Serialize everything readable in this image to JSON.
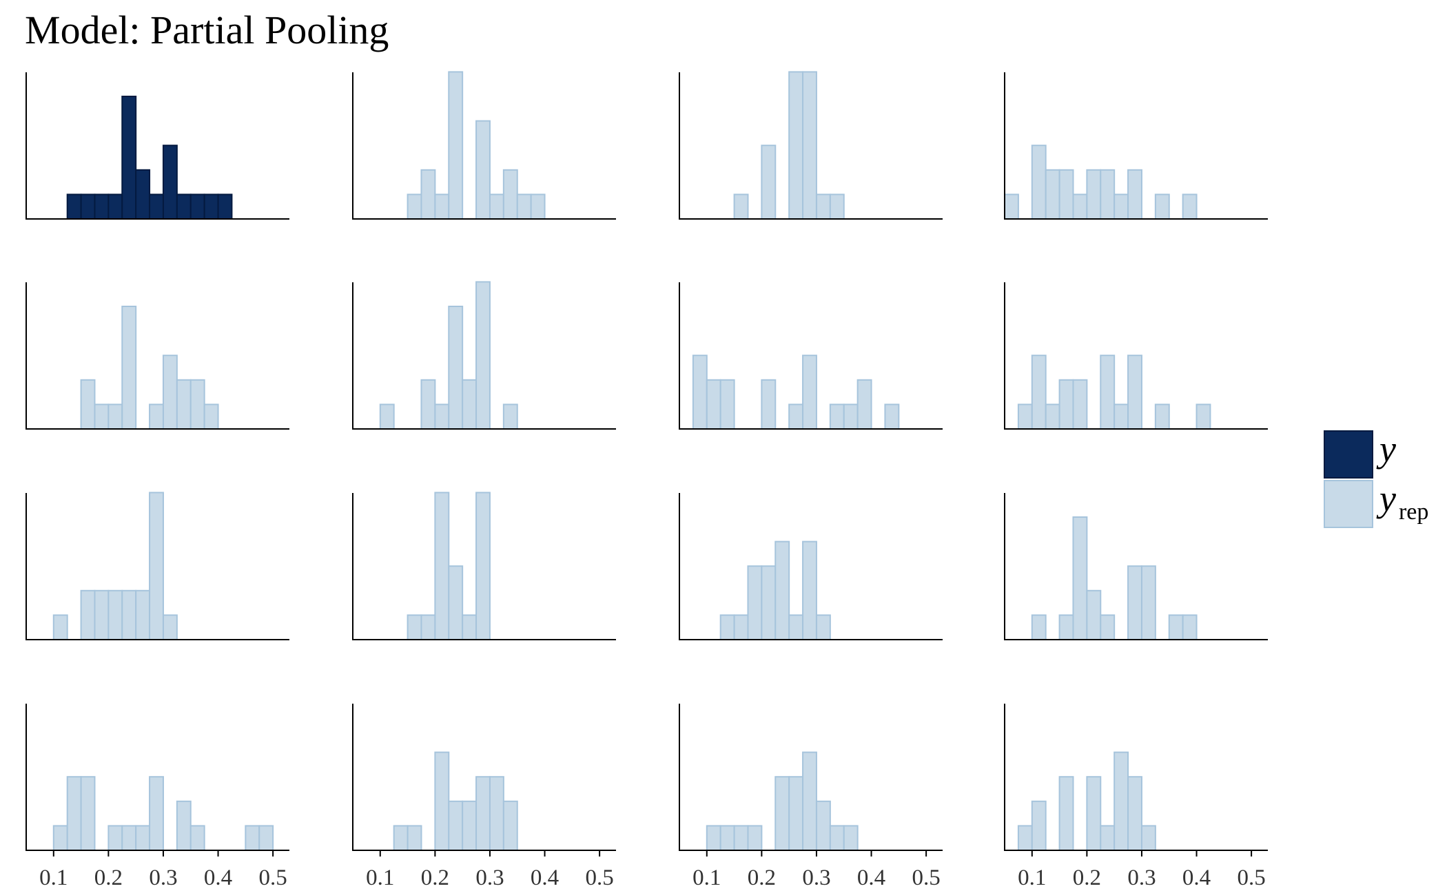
{
  "title": "Model: Partial Pooling",
  "chart_data": {
    "type": "bar",
    "layout": "4x4 facet grid of histograms",
    "xlim": [
      0.05,
      0.53
    ],
    "x_ticks": [
      "0.1",
      "0.2",
      "0.3",
      "0.4",
      "0.5"
    ],
    "bin_width": 0.025,
    "grid": false,
    "legend_position": "right",
    "colors": {
      "y": "#0b2a5c",
      "y_rep": "#c8dae8",
      "y_rep_edge": "#a6c4dc",
      "axis": "#000000"
    },
    "legend": [
      {
        "key": "y",
        "label": "y",
        "sub": ""
      },
      {
        "key": "y_rep",
        "label": "y",
        "sub": "rep"
      }
    ],
    "panels": [
      {
        "series": "y",
        "bins": [
          [
            0.125,
            1
          ],
          [
            0.15,
            1
          ],
          [
            0.175,
            1
          ],
          [
            0.2,
            1
          ],
          [
            0.225,
            5
          ],
          [
            0.25,
            2
          ],
          [
            0.275,
            1
          ],
          [
            0.3,
            3
          ],
          [
            0.325,
            1
          ],
          [
            0.35,
            1
          ],
          [
            0.375,
            1
          ],
          [
            0.4,
            1
          ]
        ]
      },
      {
        "series": "y_rep",
        "bins": [
          [
            0.15,
            1
          ],
          [
            0.175,
            2
          ],
          [
            0.2,
            1
          ],
          [
            0.225,
            6
          ],
          [
            0.275,
            4
          ],
          [
            0.3,
            1
          ],
          [
            0.325,
            2
          ],
          [
            0.35,
            1
          ],
          [
            0.375,
            1
          ]
        ]
      },
      {
        "series": "y_rep",
        "bins": [
          [
            0.15,
            1
          ],
          [
            0.2,
            3
          ],
          [
            0.25,
            6
          ],
          [
            0.275,
            6
          ],
          [
            0.3,
            1
          ],
          [
            0.325,
            1
          ]
        ]
      },
      {
        "series": "y_rep",
        "bins": [
          [
            0.05,
            1
          ],
          [
            0.1,
            3
          ],
          [
            0.125,
            2
          ],
          [
            0.15,
            2
          ],
          [
            0.175,
            1
          ],
          [
            0.2,
            2
          ],
          [
            0.225,
            2
          ],
          [
            0.25,
            1
          ],
          [
            0.275,
            2
          ],
          [
            0.325,
            1
          ],
          [
            0.375,
            1
          ]
        ]
      },
      {
        "series": "y_rep",
        "bins": [
          [
            0.15,
            2
          ],
          [
            0.175,
            1
          ],
          [
            0.2,
            1
          ],
          [
            0.225,
            5
          ],
          [
            0.275,
            1
          ],
          [
            0.3,
            3
          ],
          [
            0.325,
            2
          ],
          [
            0.35,
            2
          ],
          [
            0.375,
            1
          ]
        ]
      },
      {
        "series": "y_rep",
        "bins": [
          [
            0.1,
            1
          ],
          [
            0.175,
            2
          ],
          [
            0.2,
            1
          ],
          [
            0.225,
            5
          ],
          [
            0.25,
            2
          ],
          [
            0.275,
            6
          ],
          [
            0.325,
            1
          ]
        ]
      },
      {
        "series": "y_rep",
        "bins": [
          [
            0.075,
            3
          ],
          [
            0.1,
            2
          ],
          [
            0.125,
            2
          ],
          [
            0.2,
            2
          ],
          [
            0.25,
            1
          ],
          [
            0.275,
            3
          ],
          [
            0.325,
            1
          ],
          [
            0.35,
            1
          ],
          [
            0.375,
            2
          ],
          [
            0.425,
            1
          ]
        ]
      },
      {
        "series": "y_rep",
        "bins": [
          [
            0.075,
            1
          ],
          [
            0.1,
            3
          ],
          [
            0.125,
            1
          ],
          [
            0.15,
            2
          ],
          [
            0.175,
            2
          ],
          [
            0.225,
            3
          ],
          [
            0.25,
            1
          ],
          [
            0.275,
            3
          ],
          [
            0.325,
            1
          ],
          [
            0.4,
            1
          ]
        ]
      },
      {
        "series": "y_rep",
        "bins": [
          [
            0.1,
            1
          ],
          [
            0.15,
            2
          ],
          [
            0.175,
            2
          ],
          [
            0.2,
            2
          ],
          [
            0.225,
            2
          ],
          [
            0.25,
            2
          ],
          [
            0.275,
            6
          ],
          [
            0.3,
            1
          ]
        ]
      },
      {
        "series": "y_rep",
        "bins": [
          [
            0.15,
            1
          ],
          [
            0.175,
            1
          ],
          [
            0.2,
            6
          ],
          [
            0.225,
            3
          ],
          [
            0.25,
            1
          ],
          [
            0.275,
            6
          ]
        ]
      },
      {
        "series": "y_rep",
        "bins": [
          [
            0.125,
            1
          ],
          [
            0.15,
            1
          ],
          [
            0.175,
            3
          ],
          [
            0.2,
            3
          ],
          [
            0.225,
            4
          ],
          [
            0.25,
            1
          ],
          [
            0.275,
            4
          ],
          [
            0.3,
            1
          ]
        ]
      },
      {
        "series": "y_rep",
        "bins": [
          [
            0.1,
            1
          ],
          [
            0.15,
            1
          ],
          [
            0.175,
            5
          ],
          [
            0.2,
            2
          ],
          [
            0.225,
            1
          ],
          [
            0.275,
            3
          ],
          [
            0.3,
            3
          ],
          [
            0.35,
            1
          ],
          [
            0.375,
            1
          ]
        ]
      },
      {
        "series": "y_rep",
        "bins": [
          [
            0.1,
            1
          ],
          [
            0.125,
            3
          ],
          [
            0.15,
            3
          ],
          [
            0.2,
            1
          ],
          [
            0.225,
            1
          ],
          [
            0.25,
            1
          ],
          [
            0.275,
            3
          ],
          [
            0.325,
            2
          ],
          [
            0.35,
            1
          ],
          [
            0.45,
            1
          ],
          [
            0.475,
            1
          ]
        ]
      },
      {
        "series": "y_rep",
        "bins": [
          [
            0.125,
            1
          ],
          [
            0.15,
            1
          ],
          [
            0.2,
            4
          ],
          [
            0.225,
            2
          ],
          [
            0.25,
            2
          ],
          [
            0.275,
            3
          ],
          [
            0.3,
            3
          ],
          [
            0.325,
            2
          ]
        ]
      },
      {
        "series": "y_rep",
        "bins": [
          [
            0.1,
            1
          ],
          [
            0.125,
            1
          ],
          [
            0.15,
            1
          ],
          [
            0.175,
            1
          ],
          [
            0.225,
            3
          ],
          [
            0.25,
            3
          ],
          [
            0.275,
            4
          ],
          [
            0.3,
            2
          ],
          [
            0.325,
            1
          ],
          [
            0.35,
            1
          ]
        ]
      },
      {
        "series": "y_rep",
        "bins": [
          [
            0.075,
            1
          ],
          [
            0.1,
            2
          ],
          [
            0.15,
            3
          ],
          [
            0.2,
            3
          ],
          [
            0.225,
            1
          ],
          [
            0.25,
            4
          ],
          [
            0.275,
            3
          ],
          [
            0.3,
            1
          ]
        ]
      }
    ]
  }
}
